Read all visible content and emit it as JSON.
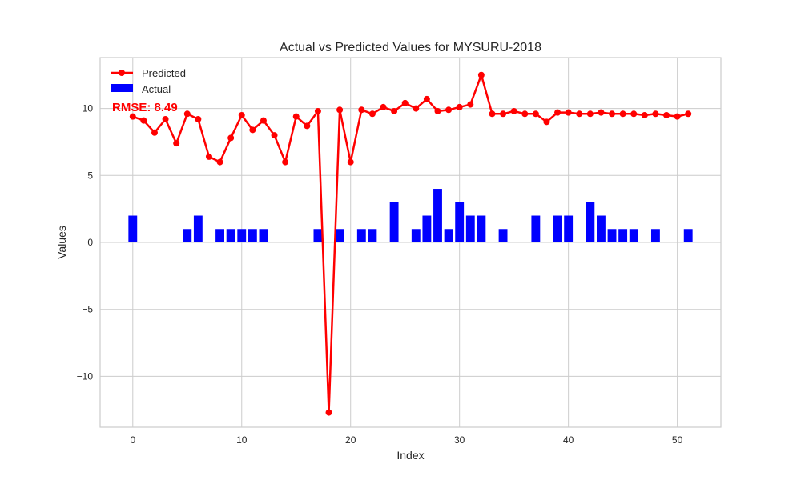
{
  "chart_data": {
    "type": "bar",
    "title": "Actual vs Predicted Values for MYSURU-2018",
    "xlabel": "Index",
    "ylabel": "Values",
    "xlim": [
      -3,
      54
    ],
    "ylim": [
      -13.8,
      13.8
    ],
    "xticks": [
      0,
      10,
      20,
      30,
      40,
      50
    ],
    "yticks": [
      -10,
      -5,
      0,
      5,
      10
    ],
    "ytick_labels": [
      "−10",
      "−5",
      "0",
      "5",
      "10"
    ],
    "grid": true,
    "legend_position": "top-left",
    "annotation": "RMSE: 8.49",
    "colors": {
      "predicted": "#ff0000",
      "actual": "#0000ff",
      "grid": "#cccccc",
      "annotation": "#ff0000"
    },
    "series": [
      {
        "name": "Predicted",
        "kind": "line",
        "x": [
          0,
          1,
          2,
          3,
          4,
          5,
          6,
          7,
          8,
          9,
          10,
          11,
          12,
          13,
          14,
          15,
          16,
          17,
          18,
          19,
          20,
          21,
          22,
          23,
          24,
          25,
          26,
          27,
          28,
          29,
          30,
          31,
          32,
          33,
          34,
          35,
          36,
          37,
          38,
          39,
          40,
          41,
          42,
          43,
          44,
          45,
          46,
          47,
          48,
          49,
          50,
          51
        ],
        "values": [
          9.4,
          9.1,
          8.2,
          9.2,
          7.4,
          9.6,
          9.2,
          6.4,
          6.0,
          7.8,
          9.5,
          8.4,
          9.1,
          8.0,
          6.0,
          9.4,
          8.7,
          9.8,
          -12.7,
          9.9,
          6.0,
          9.9,
          9.6,
          10.1,
          9.8,
          10.4,
          10.0,
          10.7,
          9.8,
          9.9,
          10.1,
          10.3,
          12.5,
          9.6,
          9.6,
          9.8,
          9.6,
          9.6,
          9.0,
          9.7,
          9.7,
          9.6,
          9.6,
          9.7,
          9.6,
          9.6,
          9.6,
          9.5,
          9.6,
          9.5,
          9.4,
          9.6
        ]
      },
      {
        "name": "Actual",
        "kind": "bar",
        "x": [
          0,
          1,
          2,
          3,
          4,
          5,
          6,
          7,
          8,
          9,
          10,
          11,
          12,
          13,
          14,
          15,
          16,
          17,
          18,
          19,
          20,
          21,
          22,
          23,
          24,
          25,
          26,
          27,
          28,
          29,
          30,
          31,
          32,
          33,
          34,
          35,
          36,
          37,
          38,
          39,
          40,
          41,
          42,
          43,
          44,
          45,
          46,
          47,
          48,
          49,
          50,
          51
        ],
        "values": [
          2,
          0,
          0,
          0,
          0,
          1,
          2,
          0,
          1,
          1,
          1,
          1,
          1,
          0,
          0,
          0,
          0,
          1,
          0,
          1,
          0,
          1,
          1,
          0,
          3,
          0,
          1,
          2,
          4,
          1,
          3,
          2,
          2,
          0,
          1,
          0,
          0,
          2,
          0,
          2,
          2,
          0,
          3,
          2,
          1,
          1,
          1,
          0,
          1,
          0,
          0,
          1
        ]
      }
    ]
  }
}
